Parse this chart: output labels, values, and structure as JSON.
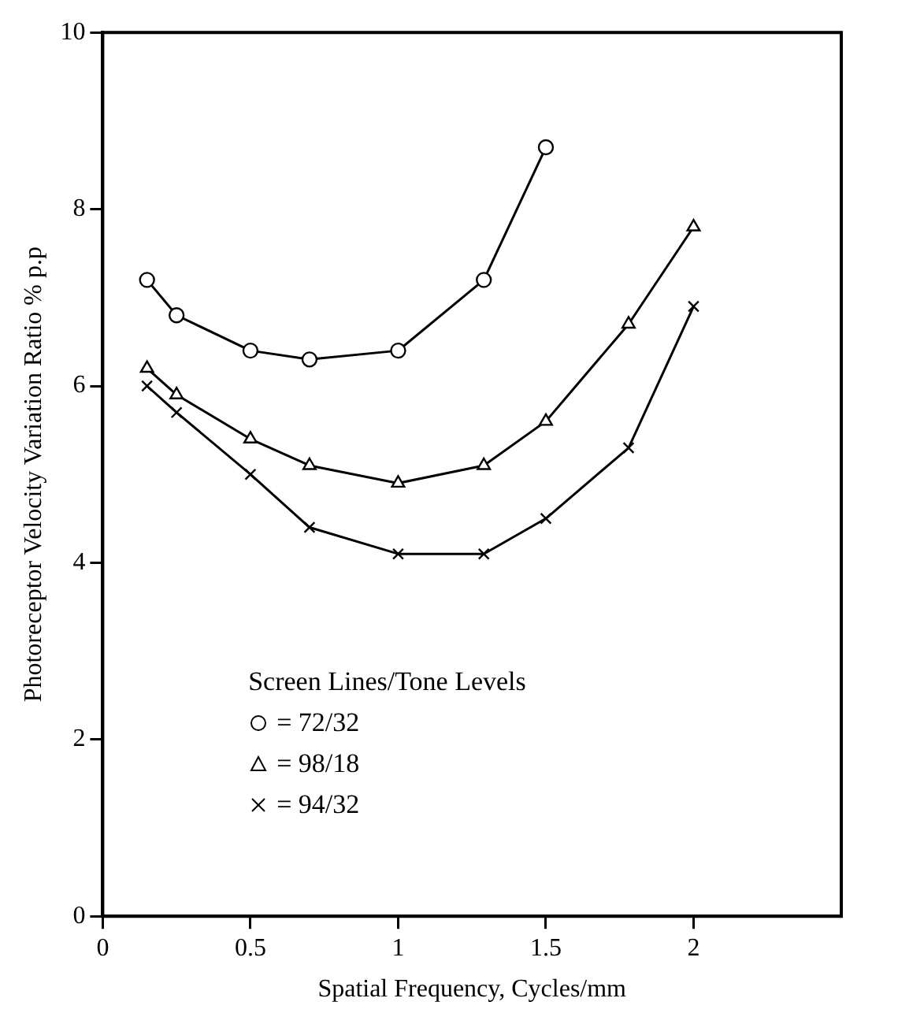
{
  "chart_data": {
    "type": "line",
    "xlabel": "Spatial Frequency, Cycles/mm",
    "ylabel": "Photoreceptor Velocity Variation Ratio % p.p",
    "legend_title": "Screen Lines/Tone Levels",
    "legend": "bottom left",
    "grid": false,
    "xlim": [
      0,
      2.5
    ],
    "xticks": [
      0,
      0.5,
      1,
      1.5,
      2
    ],
    "ylim": [
      0,
      10
    ],
    "yticks": [
      0,
      2,
      4,
      6,
      8,
      10
    ],
    "line_style": "solid",
    "series": [
      {
        "name": "= 72/32",
        "color": "#000000",
        "marker": "circle",
        "x": [
          0.15,
          0.25,
          0.5,
          0.7,
          1.0,
          1.29,
          1.5
        ],
        "values": [
          7.2,
          6.8,
          6.4,
          6.3,
          6.4,
          7.2,
          8.7
        ]
      },
      {
        "name": "= 98/18",
        "color": "#000000",
        "marker": "triangle",
        "x": [
          0.15,
          0.25,
          0.5,
          0.7,
          1.0,
          1.29,
          1.5,
          1.78,
          2.0
        ],
        "values": [
          6.2,
          5.9,
          5.4,
          5.1,
          4.9,
          5.1,
          5.6,
          6.7,
          7.8
        ]
      },
      {
        "name": "= 94/32",
        "color": "#000000",
        "marker": "cross",
        "x": [
          0.15,
          0.25,
          0.5,
          0.7,
          1.0,
          1.29,
          1.5,
          1.78,
          2.0
        ],
        "values": [
          6.0,
          5.7,
          5.0,
          4.4,
          4.1,
          4.1,
          4.5,
          5.3,
          6.9
        ]
      }
    ]
  }
}
